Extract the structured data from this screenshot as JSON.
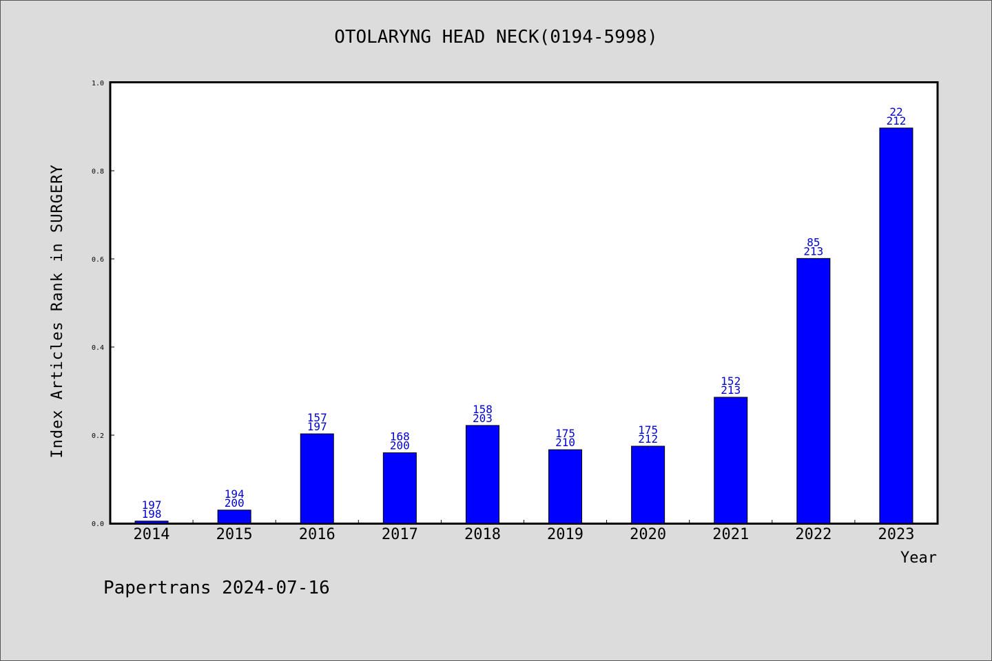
{
  "chart_data": {
    "type": "bar",
    "title": "OTOLARYNG HEAD NECK(0194-5998)",
    "xlabel": "Year",
    "ylabel": "Index Articles Rank in SURGERY",
    "ylim": [
      0,
      1.0
    ],
    "yticks": [
      "0.0",
      "0.2",
      "0.4",
      "0.6",
      "0.8",
      "1.0"
    ],
    "categories": [
      "2014",
      "2015",
      "2016",
      "2017",
      "2018",
      "2019",
      "2020",
      "2021",
      "2022",
      "2023"
    ],
    "values": [
      0.005,
      0.03,
      0.203,
      0.16,
      0.222,
      0.167,
      0.175,
      0.286,
      0.601,
      0.897
    ],
    "labels_top": [
      "197",
      "194",
      "157",
      "168",
      "158",
      "175",
      "175",
      "152",
      "85",
      "22"
    ],
    "labels_bottom": [
      "198",
      "200",
      "197",
      "200",
      "203",
      "210",
      "212",
      "213",
      "213",
      "212"
    ],
    "bar_color": "#0000ff",
    "label_color": "#0000cc",
    "grid": false,
    "legend": "none"
  },
  "footer": "Papertrans 2024-07-16"
}
